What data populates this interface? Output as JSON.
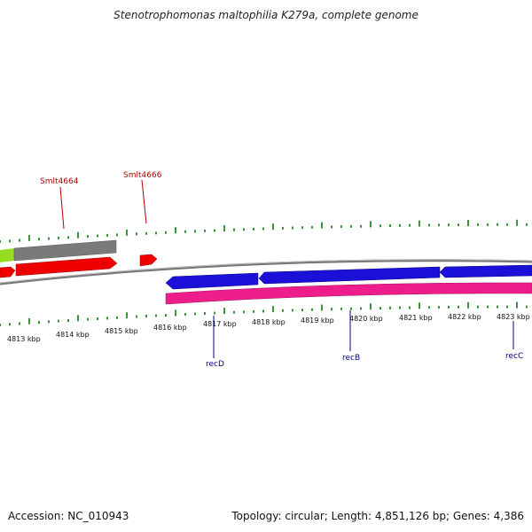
{
  "title": "Stenotrophomonas maltophilia K279a, complete genome",
  "footer": {
    "accession": "Accession: NC_010943",
    "summary": "Topology: circular; Length: 4,851,126 bp; Genes: 4,386"
  },
  "axis": {
    "unit": "kbp",
    "ticks": [
      {
        "label": "4813 kbp"
      },
      {
        "label": "4814 kbp"
      },
      {
        "label": "4815 kbp"
      },
      {
        "label": "4816 kbp"
      },
      {
        "label": "4817 kbp"
      },
      {
        "label": "4818 kbp"
      },
      {
        "label": "4819 kbp"
      },
      {
        "label": "4820 kbp"
      },
      {
        "label": "4821 kbp"
      },
      {
        "label": "4822 kbp"
      },
      {
        "label": "4823 kbp"
      }
    ]
  },
  "gene_labels": [
    {
      "text": "Smlt4664",
      "strand": "forward"
    },
    {
      "text": "Smlt4666",
      "strand": "forward"
    },
    {
      "text": "recD",
      "strand": "reverse"
    },
    {
      "text": "recB",
      "strand": "reverse"
    },
    {
      "text": "recC",
      "strand": "reverse"
    }
  ],
  "colors": {
    "forward_gene": "#ee0000",
    "reverse_gene": "#1a10d8",
    "feature_gray": "#7a7a7a",
    "feature_green": "#99dd22",
    "reverse_feature_pink": "#ee1d8c",
    "tick_green": "#0a7a0a",
    "backbone": "#888888"
  }
}
